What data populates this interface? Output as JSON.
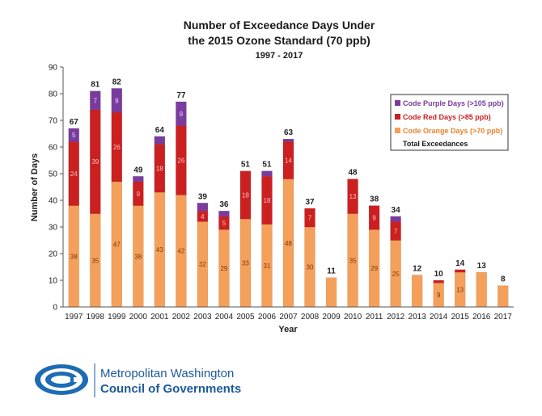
{
  "chart_data": {
    "type": "bar",
    "stacked": true,
    "title_line1": "Number of Exceedance Days Under",
    "title_line2": "the 2015 Ozone Standard (70 ppb)",
    "subtitle": "1997 - 2017",
    "xlabel": "Year",
    "ylabel": "Number of Days",
    "ylim": [
      0,
      90
    ],
    "yticks": [
      0,
      10,
      20,
      30,
      40,
      50,
      60,
      70,
      80,
      90
    ],
    "grid": false,
    "legend_position": "right",
    "categories": [
      "1997",
      "1998",
      "1999",
      "2000",
      "2001",
      "2002",
      "2003",
      "2004",
      "2005",
      "2006",
      "2007",
      "2008",
      "2009",
      "2010",
      "2011",
      "2012",
      "2013",
      "2014",
      "2015",
      "2016",
      "2017"
    ],
    "series": [
      {
        "name": "Code Orange Days (>70 ppb)",
        "color": "#f5a05a",
        "values": [
          38,
          35,
          47,
          38,
          43,
          42,
          32,
          29,
          33,
          31,
          48,
          30,
          11,
          35,
          29,
          25,
          12,
          9,
          13,
          13,
          8
        ],
        "labels": [
          "38",
          "35",
          "47",
          "38",
          "43",
          "42",
          "32",
          "29",
          "33",
          "31",
          "48",
          "30",
          "",
          "35",
          "29",
          "25",
          "",
          "9",
          "13",
          "",
          ""
        ]
      },
      {
        "name": "Code Red Days (>85 ppb)",
        "color": "#cc1f1f",
        "values": [
          24,
          39,
          26,
          9,
          18,
          26,
          4,
          5,
          18,
          18,
          14,
          7,
          0,
          13,
          9,
          7,
          0,
          1,
          1,
          0,
          0
        ],
        "labels": [
          "24",
          "39",
          "26",
          "9",
          "18",
          "26",
          "4",
          "5",
          "18",
          "18",
          "14",
          "7",
          "",
          "13",
          "9",
          "7",
          "",
          "",
          "",
          "",
          ""
        ]
      },
      {
        "name": "Code Purple Days (>105 ppb)",
        "color": "#7a3b9e",
        "values": [
          5,
          7,
          9,
          2,
          3,
          9,
          3,
          2,
          0,
          2,
          1,
          0,
          0,
          0,
          0,
          2,
          0,
          0,
          0,
          0,
          0
        ],
        "labels": [
          "5",
          "7",
          "9",
          "",
          "",
          "9",
          "",
          "",
          "",
          "",
          "",
          "",
          "",
          "",
          "",
          "",
          "",
          "",
          "",
          "",
          ""
        ]
      }
    ],
    "totals": [
      67,
      81,
      82,
      49,
      64,
      77,
      39,
      36,
      51,
      51,
      63,
      37,
      11,
      48,
      38,
      34,
      12,
      10,
      14,
      13,
      8
    ],
    "totals_legend": "Total Exceedances"
  },
  "footer": {
    "org_line1": "Metropolitan Washington",
    "org_line2": "Council of Governments"
  }
}
